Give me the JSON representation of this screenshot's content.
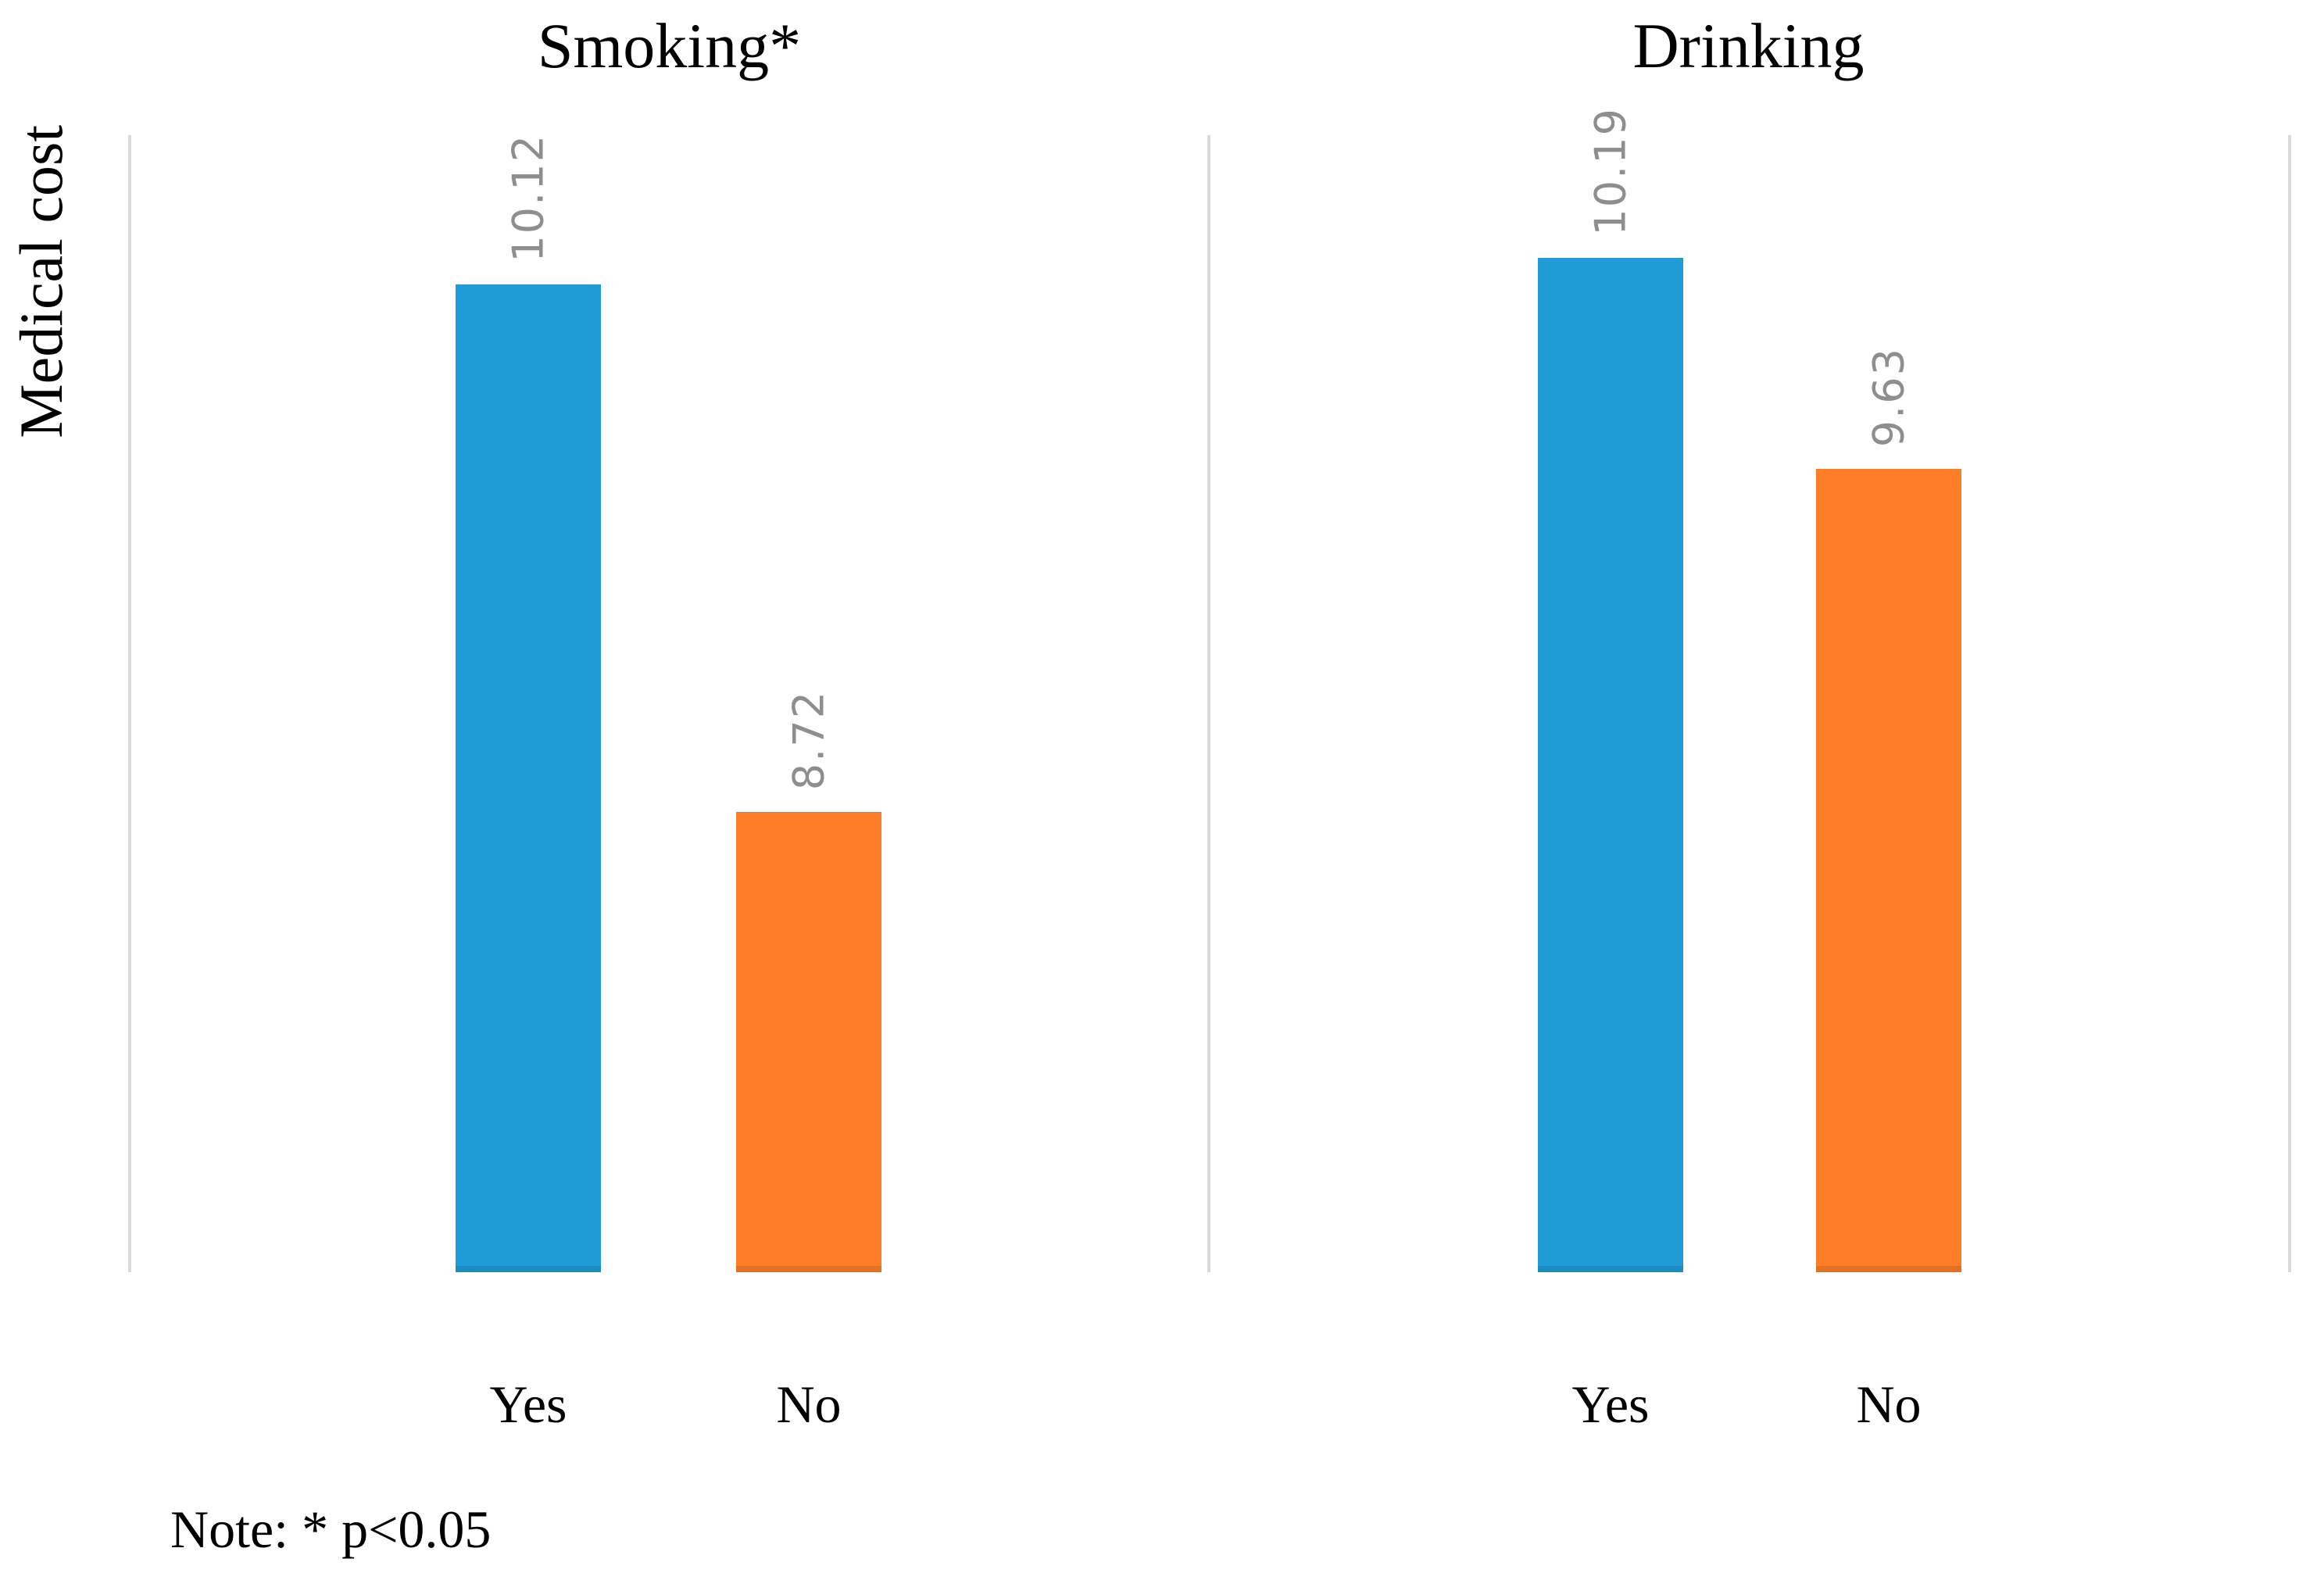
{
  "figure": {
    "y_axis_label": "Medical cost",
    "note": "Note: * p<0.05",
    "colors": {
      "bar-yes": "#1F9CD8",
      "bar-no": "#FD7E27",
      "axis-line": "#D9D9D9",
      "data-label": "#8E8E8E",
      "text": "#000000"
    }
  },
  "chart_data": [
    {
      "type": "bar",
      "title": "Smoking*",
      "categories": [
        "Yes",
        "No"
      ],
      "values": [
        10.12,
        8.72
      ],
      "data_labels": [
        "10.12",
        "8.72"
      ],
      "bar_colors": [
        "#1F9CD8",
        "#FD7E27"
      ],
      "ylabel": "Medical cost",
      "ylim": [
        7.5,
        10.515
      ],
      "grid": false,
      "legend": "none",
      "data_label_rotation": 90,
      "axis_ticks_visible": false
    },
    {
      "type": "bar",
      "title": "Drinking",
      "categories": [
        "Yes",
        "No"
      ],
      "values": [
        10.19,
        9.63
      ],
      "data_labels": [
        "10.19",
        "9.63"
      ],
      "bar_colors": [
        "#1F9CD8",
        "#FD7E27"
      ],
      "ylabel": "Medical cost",
      "ylim": [
        7.5,
        10.515
      ],
      "grid": false,
      "legend": "none",
      "data_label_rotation": 90,
      "axis_ticks_visible": false
    }
  ]
}
